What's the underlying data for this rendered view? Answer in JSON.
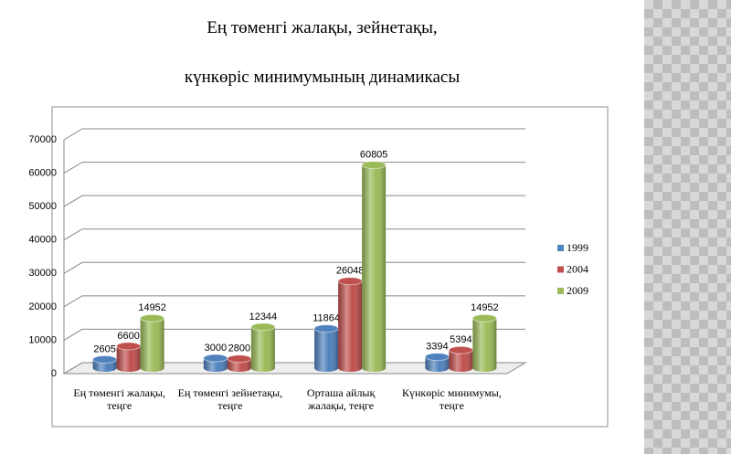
{
  "chart_data": {
    "type": "bar3d",
    "title": "Ең төменгі жалақы, зейнетақы,",
    "subtitle": "күнкөріс минимумының динамикасы",
    "categories": [
      "Ең төменгі жалақы, теңге",
      "Ең төменгі зейнетақы, теңге",
      "Орташа айлық жалақы, теңге",
      "Күнкөріс минимумы, теңге"
    ],
    "series": [
      {
        "name": "1999",
        "color": "#4f81bd",
        "values": [
          2605,
          3000,
          11864,
          3394
        ]
      },
      {
        "name": "2004",
        "color": "#c0504d",
        "values": [
          6600,
          2800,
          26048,
          5394
        ]
      },
      {
        "name": "2009",
        "color": "#9bbb59",
        "values": [
          14952,
          12344,
          60805,
          14952
        ]
      }
    ],
    "ylim": [
      0,
      70000
    ],
    "yticks": [
      0,
      10000,
      20000,
      30000,
      40000,
      50000,
      60000,
      70000
    ],
    "grid": true,
    "legend": "right"
  }
}
